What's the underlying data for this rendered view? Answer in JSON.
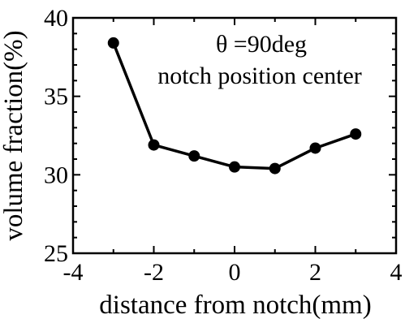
{
  "chart_data": {
    "type": "line",
    "title": "",
    "xlabel": "distance from notch(mm)",
    "ylabel": "volume fraction(%)",
    "xlim": [
      -4,
      4
    ],
    "ylim": [
      25,
      40
    ],
    "x_ticks": [
      "-4",
      "-2",
      "0",
      "2",
      "4"
    ],
    "y_ticks": [
      "25",
      "30",
      "35",
      "40"
    ],
    "x_tick_values": [
      -4,
      -2,
      0,
      2,
      4
    ],
    "y_tick_values": [
      25,
      30,
      35,
      40
    ],
    "grid": false,
    "annotations": [
      "θ =90deg",
      "notch position center"
    ],
    "series": [
      {
        "x": [
          -3,
          -2,
          -1,
          0,
          1,
          2,
          3
        ],
        "y": [
          38.4,
          31.9,
          31.2,
          30.5,
          30.4,
          31.7,
          32.6
        ]
      }
    ],
    "colors": {
      "line": "#000000",
      "marker": "#000000"
    }
  }
}
